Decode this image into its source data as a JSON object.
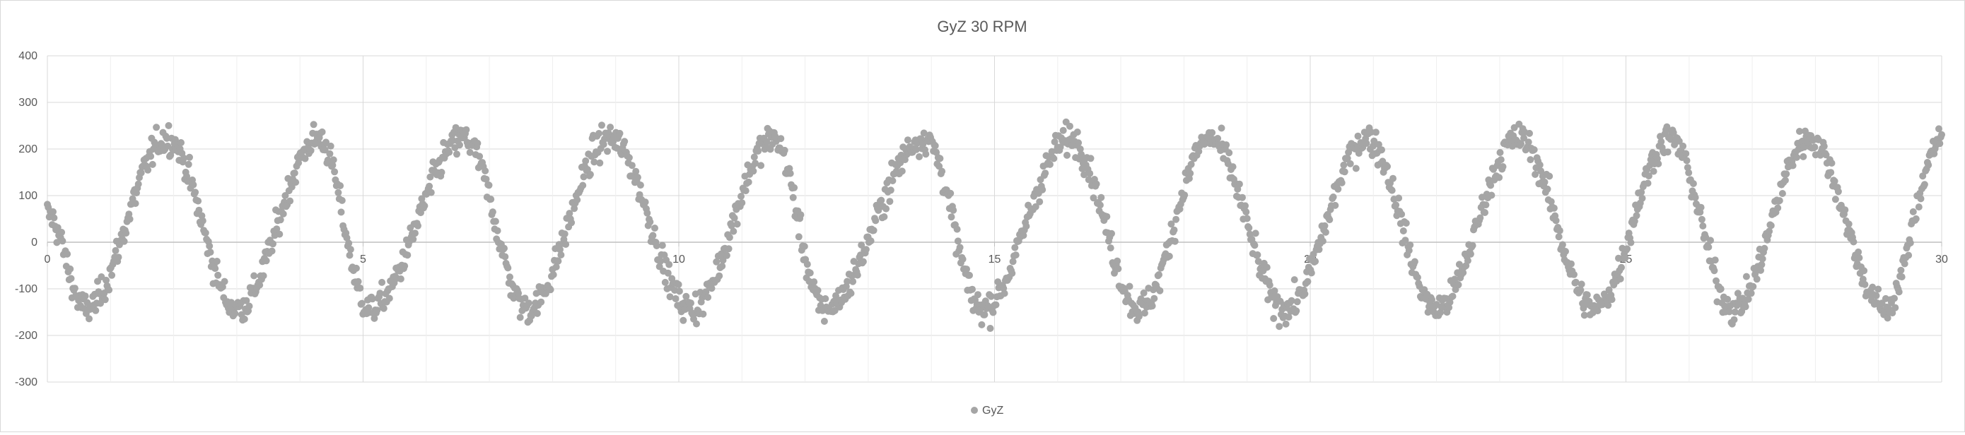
{
  "chart_data": {
    "type": "scatter",
    "title": "GyZ 30 RPM",
    "xlabel": "",
    "ylabel": "",
    "xlim": [
      0,
      30
    ],
    "ylim": [
      -300,
      400
    ],
    "x_ticks": [
      "0",
      "5",
      "10",
      "15",
      "20",
      "25",
      "30"
    ],
    "y_ticks": [
      "400",
      "300",
      "200",
      "100",
      "0",
      "-100",
      "-200",
      "-300"
    ],
    "x_tick_values": [
      0,
      5,
      10,
      15,
      20,
      25,
      30
    ],
    "y_tick_values": [
      400,
      300,
      200,
      100,
      0,
      -100,
      -200,
      -300
    ],
    "grid": true,
    "legend_position": "bottom",
    "series": [
      {
        "name": "GyZ",
        "color": "#a5a5a5",
        "period": 2.5,
        "amplitude": 150,
        "offset": 40,
        "noise": 45,
        "num_points": 2000,
        "peak_times": [
          1.9,
          4.3,
          6.6,
          8.9,
          11.5,
          13.9,
          16.2,
          18.4,
          20.9,
          23.3,
          25.7,
          27.9,
          30.0
        ],
        "trough_times": [
          0.6,
          3.0,
          5.1,
          7.6,
          10.2,
          12.3,
          14.8,
          17.3,
          19.6,
          22.0,
          24.5,
          26.7,
          29.1
        ]
      }
    ]
  }
}
